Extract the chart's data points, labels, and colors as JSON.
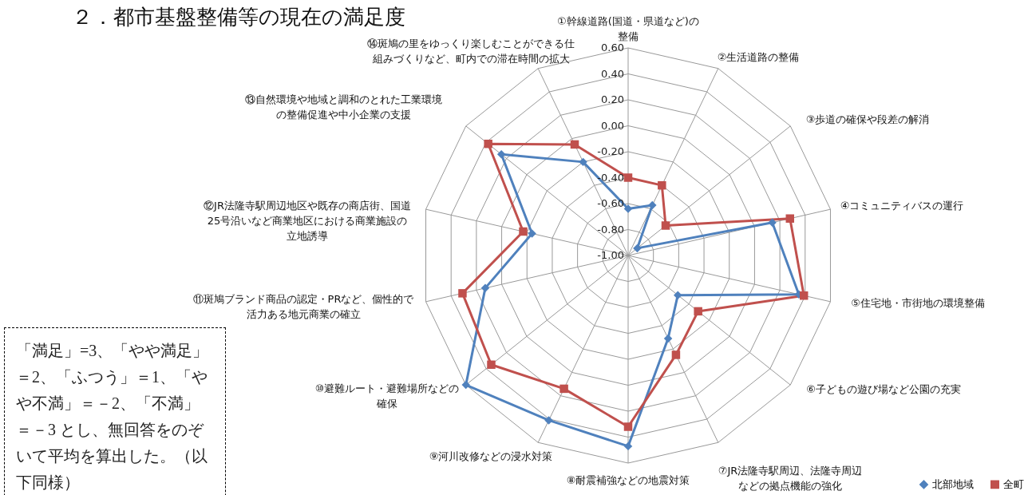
{
  "chart_data": {
    "type": "radar",
    "title": "２．都市基盤整備等の現在の満足度",
    "categories": [
      "①幹線道路(国道・県道など)の整備",
      "②生活道路の整備",
      "③歩道の確保や段差の解消",
      "④コミュニティバスの運行",
      "⑤住宅地・市街地の環境整備",
      "⑥子どもの遊び場など公園の充実",
      "⑦JR法隆寺駅周辺、法隆寺周辺などの拠点機能の強化",
      "⑧耐震補強などの地震対策",
      "⑨河川改修などの浸水対策",
      "⑩避難ルート・避難場所などの確保",
      "⑪斑鳩ブランド商品の認定・PRなど、個性的で活力ある地元商業の確立",
      "⑫JR法隆寺駅周辺地区や既存の商店街、国道25号沿いなど商業地区における商業施設の立地誘導",
      "⑬自然環境や地域と調和のとれた工業環境の整備促進や中小企業の支援",
      "⑭斑鳩の里をゆっくり楽しむことができる仕組みづくりなど、町内での滞在時間の拡大"
    ],
    "series": [
      {
        "name": "北部地域",
        "color": "#4f81bd",
        "marker": "diamond",
        "values": [
          -0.64,
          -0.57,
          -0.91,
          0.14,
          0.35,
          -0.51,
          -0.29,
          0.47,
          0.41,
          0.6,
          0.13,
          -0.24,
          0.25,
          -0.2
        ]
      },
      {
        "name": "全町",
        "color": "#c0504d",
        "marker": "square",
        "values": [
          -0.4,
          -0.4,
          -0.63,
          0.28,
          0.39,
          -0.31,
          -0.15,
          0.32,
          0.14,
          0.35,
          0.31,
          -0.17,
          0.38,
          -0.05
        ]
      }
    ],
    "ylim": [
      -1,
      0.6
    ],
    "yticks": [
      {
        "value": -1,
        "label": "-1.00"
      },
      {
        "value": -0.8,
        "label": "-0.80"
      },
      {
        "value": -0.6,
        "label": "-0.60"
      },
      {
        "value": -0.4,
        "label": "-0.40"
      },
      {
        "value": -0.2,
        "label": "-0.20"
      },
      {
        "value": 0,
        "label": "0.00"
      },
      {
        "value": 0.2,
        "label": "0.20"
      },
      {
        "value": 0.4,
        "label": "0.40"
      },
      {
        "value": 0.6,
        "label": "0.60"
      }
    ],
    "grid": true,
    "legend": "bottom right",
    "line_style": "solid",
    "annotations": [
      "「満足」=3、「やや満足」＝2、「ふつう」＝1、「やや不満」＝－2、「不満」＝－3 とし、無回答をのぞいて平均を算出した。（以下同様）"
    ]
  }
}
